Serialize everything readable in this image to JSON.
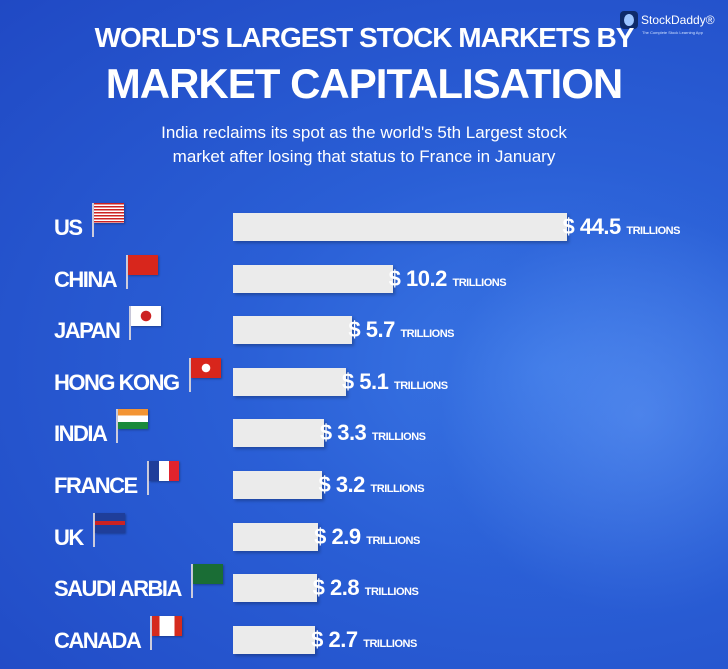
{
  "logo": {
    "name": "StockDaddy®",
    "tagline": "The Complete Stock Learning App"
  },
  "chart_data": {
    "type": "bar",
    "orientation": "horizontal",
    "title_line1": "WORLD'S LARGEST STOCK MARKETS BY",
    "title_line2": "MARKET CAPITALISATION",
    "subtitle_line1": "India reclaims its spot as the world's 5th Largest stock",
    "subtitle_line2": "market after losing that status to France in January",
    "currency": "$",
    "unit": "TRILLIONS",
    "categories": [
      "US",
      "CHINA",
      "JAPAN",
      "HONG KONG",
      "INDIA",
      "FRANCE",
      "UK",
      "SAUDI ARBIA",
      "CANADA"
    ],
    "values": [
      44.5,
      10.2,
      5.7,
      5.1,
      3.3,
      3.2,
      2.9,
      2.8,
      2.7
    ],
    "value_labels": [
      "44.5",
      "10.2",
      "5.7",
      "5.1",
      "3.3",
      "3.2",
      "2.9",
      "2.8",
      "2.7"
    ],
    "flags": [
      "us-flag",
      "china-flag",
      "japan-flag",
      "hong-kong-flag",
      "india-flag",
      "france-flag",
      "uk-flag",
      "saudi-arabia-flag",
      "canada-flag"
    ]
  }
}
